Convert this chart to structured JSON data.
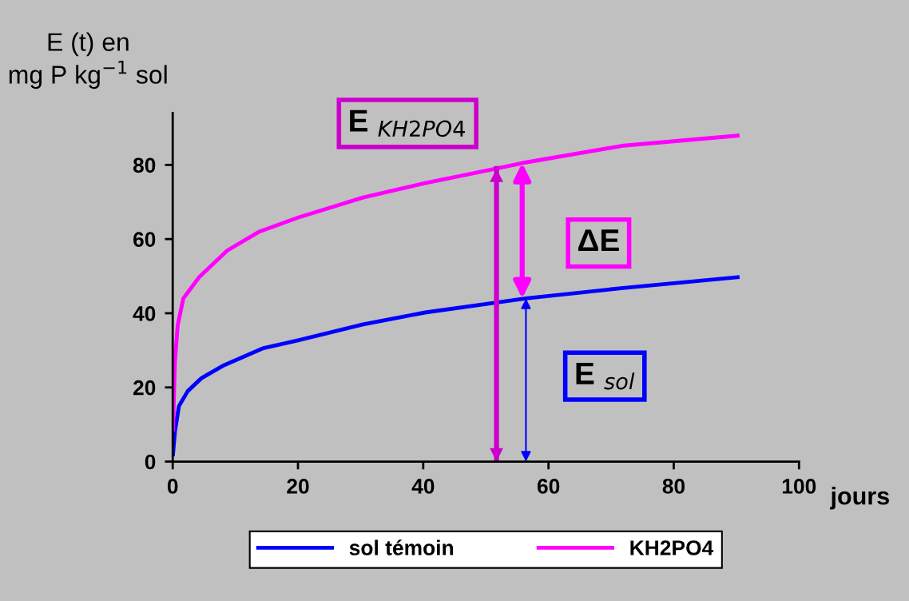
{
  "chart_data": {
    "type": "line",
    "ylabel": "E (t) en\nmg P kg$^{−1}$ sol",
    "xlabel": "jours",
    "xlim": [
      0,
      100
    ],
    "xticks": [
      0,
      20,
      40,
      60,
      80,
      100
    ],
    "ylim": [
      0,
      94
    ],
    "yticks": [
      0,
      20,
      40,
      60,
      80
    ],
    "series": [
      {
        "name": "sol témoin",
        "color": "#0000ff",
        "x": [
          0.04,
          0.35,
          1.0,
          2.4,
          4.6,
          8.2,
          14.5,
          20,
          30.4,
          40.3,
          51.4,
          56.4,
          71.9,
          90.2
        ],
        "values": [
          2,
          8,
          15,
          19,
          22.5,
          26,
          30.6,
          32.7,
          37,
          40.2,
          42.8,
          44,
          46.8,
          49.7
        ]
      },
      {
        "name": "KH2PO4",
        "color": "#ff00ff",
        "x": [
          0.04,
          0.35,
          0.8,
          1.7,
          4.2,
          8.7,
          13.7,
          20,
          30.4,
          40.3,
          51.7,
          55.8,
          72,
          90.2
        ],
        "values": [
          8.7,
          26.8,
          36.8,
          44,
          49.7,
          56.9,
          61.9,
          65.8,
          71.2,
          75.1,
          79,
          80.5,
          85.2,
          87.9
        ]
      },
      {
        "color": "#cc00cc",
        "x": [
          51.7,
          51.7
        ],
        "values": [
          0,
          79
        ]
      }
    ],
    "annotations": [
      "E $_{KH2PO4}$",
      "ΔE",
      "E $_{sol}$"
    ],
    "legend": "bottom",
    "grid": false,
    "marker": "none",
    "line_style": "solid"
  }
}
